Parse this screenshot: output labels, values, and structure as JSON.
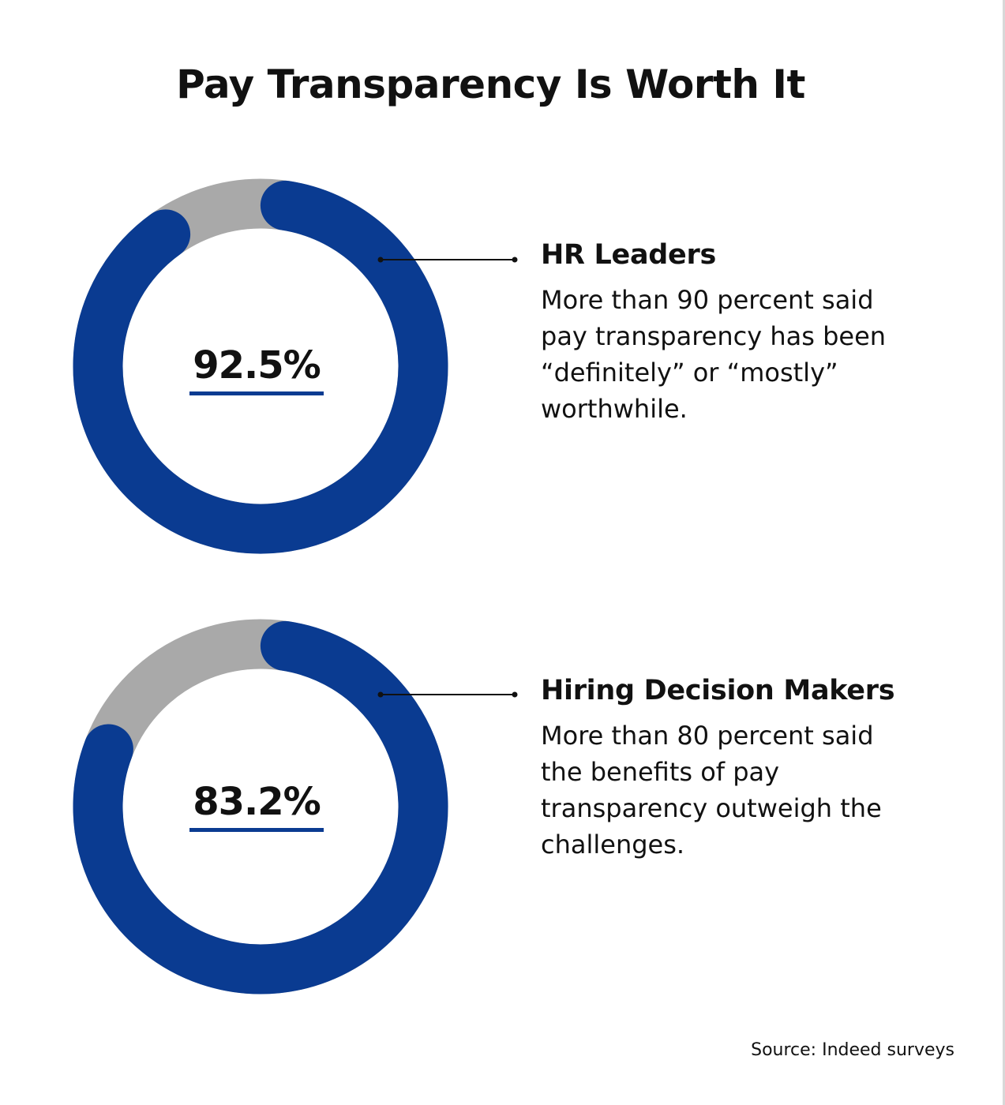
{
  "title": "Pay Transparency Is Worth It",
  "source": "Source: Indeed surveys",
  "colors": {
    "accent": "#0a3b91",
    "remainder": "#a9a9a9"
  },
  "chart_data": [
    {
      "type": "pie",
      "variant": "donut",
      "value_percent": 92.5,
      "center_label": "92.5%",
      "label": "HR Leaders",
      "description": "More than 90 percent said pay transparency has been “definitely” or “mostly” worthwhile."
    },
    {
      "type": "pie",
      "variant": "donut",
      "value_percent": 83.2,
      "center_label": "83.2%",
      "label": "Hiring Decision Makers",
      "description": "More than 80 percent said the benefits of pay transparency outweigh the challenges."
    }
  ]
}
